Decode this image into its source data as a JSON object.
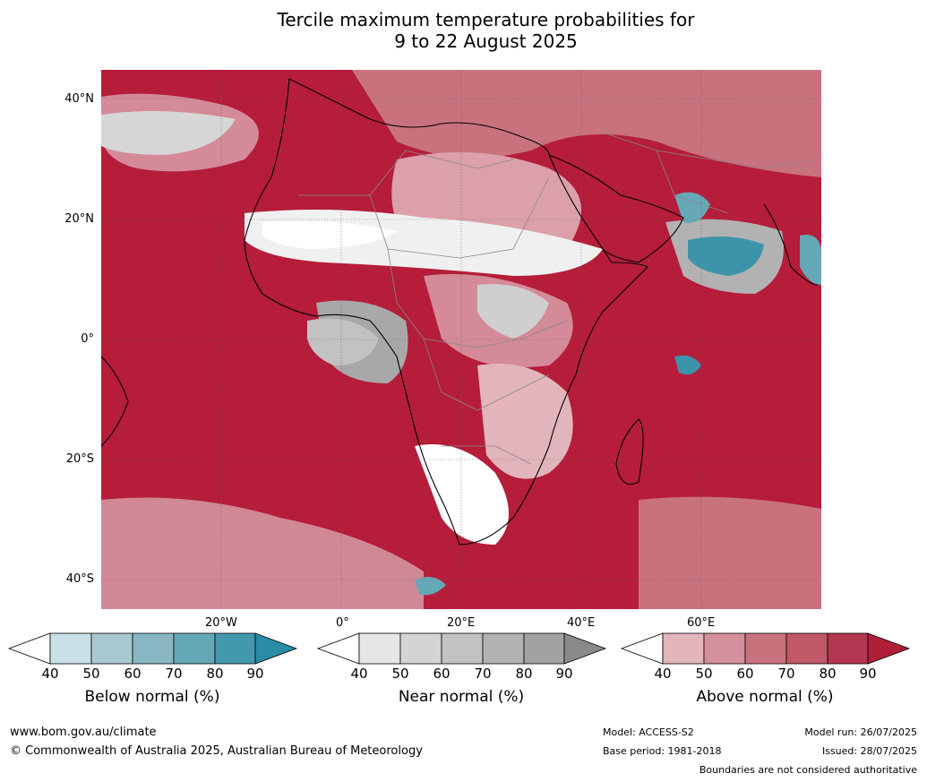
{
  "title_line1": "Tercile maximum temperature probabilities for",
  "title_line2": "9 to 22 August 2025",
  "lat_labels": [
    "40°N",
    "20°N",
    "0°",
    "20°S",
    "40°S"
  ],
  "lon_labels": [
    "20°W",
    "0°",
    "20°E",
    "40°E",
    "60°E"
  ],
  "legends": [
    {
      "label": "Below normal (%)",
      "ticks": [
        "40",
        "50",
        "60",
        "70",
        "80",
        "90"
      ],
      "colors": [
        "#c8e0e6",
        "#a8c8d0",
        "#88b6c2",
        "#66a8b6",
        "#4498ad",
        "#2a8ca6"
      ]
    },
    {
      "label": "Near normal (%)",
      "ticks": [
        "40",
        "50",
        "60",
        "70",
        "80",
        "90"
      ],
      "colors": [
        "#e6e6e6",
        "#d4d4d4",
        "#c2c2c2",
        "#b2b2b2",
        "#a2a2a2",
        "#8a8a8a"
      ]
    },
    {
      "label": "Above normal (%)",
      "ticks": [
        "40",
        "50",
        "60",
        "70",
        "80",
        "90"
      ],
      "colors": [
        "#e2b4bc",
        "#d4909c",
        "#c8727e",
        "#c05868",
        "#b53650",
        "#b01e3a"
      ]
    }
  ],
  "footer": {
    "website": "www.bom.gov.au/climate",
    "copyright": "© Commonwealth of Australia 2025, Australian Bureau of Meteorology",
    "model": "Model: ACCESS-S2",
    "base_period": "Base period: 1981-2018",
    "model_run": "Model run: 26/07/2025",
    "issued": "Issued: 28/07/2025",
    "disclaimer": "Boundaries are not considered authoritative"
  }
}
